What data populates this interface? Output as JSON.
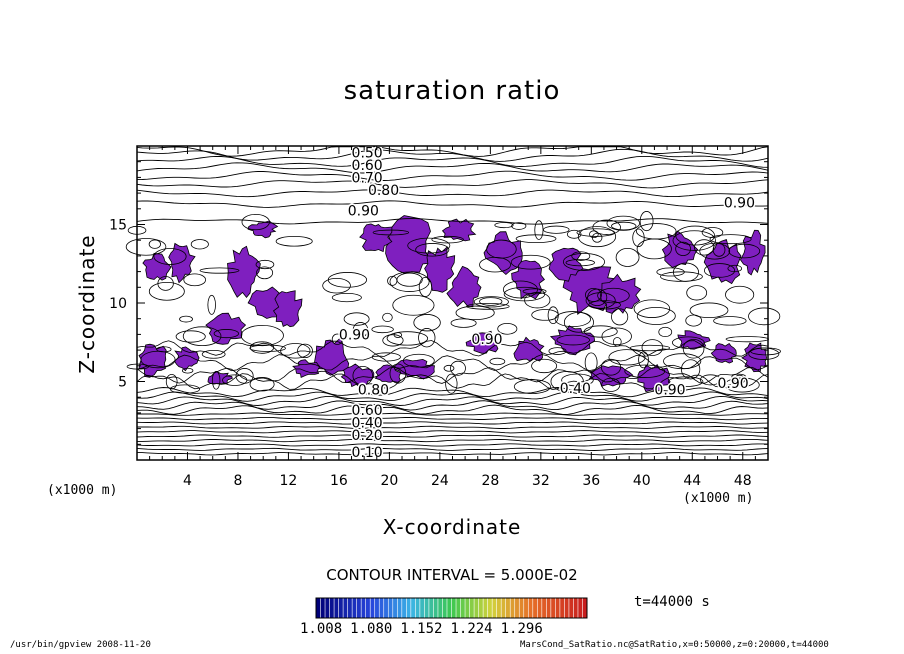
{
  "chart_data": {
    "type": "contour",
    "title": "saturation ratio",
    "xlabel": "X-coordinate",
    "ylabel": "Z-coordinate",
    "x_unit": "(x1000 m)",
    "y_unit": "(x1000 m)",
    "xlim": [
      0,
      50
    ],
    "ylim": [
      0,
      20
    ],
    "xticks": [
      4,
      8,
      12,
      16,
      20,
      24,
      28,
      32,
      36,
      40,
      44,
      48
    ],
    "yticks": [
      5,
      10,
      15
    ],
    "contour_labels": [
      "0.50",
      "0.60",
      "0.70",
      "0.80",
      "0.90",
      "0.90",
      "0.90",
      "0.90",
      "0.90",
      "0.80",
      "0.60",
      "0.40",
      "0.20",
      "0.10",
      "0.40",
      "0.90"
    ],
    "contour_interval": "CONTOUR INTERVAL = 5.000E-02",
    "colorbar_ticks": [
      "1.008",
      "1.080",
      "1.152",
      "1.224",
      "1.296"
    ],
    "time": "t=44000 s",
    "fill_color": "#7f1fbf",
    "grid": false
  },
  "footer": {
    "left": "/usr/bin/gpview   2008-11-20",
    "right": "MarsCond_SatRatio.nc@SatRatio,x=0:50000,z=0:20000,t=44000"
  }
}
